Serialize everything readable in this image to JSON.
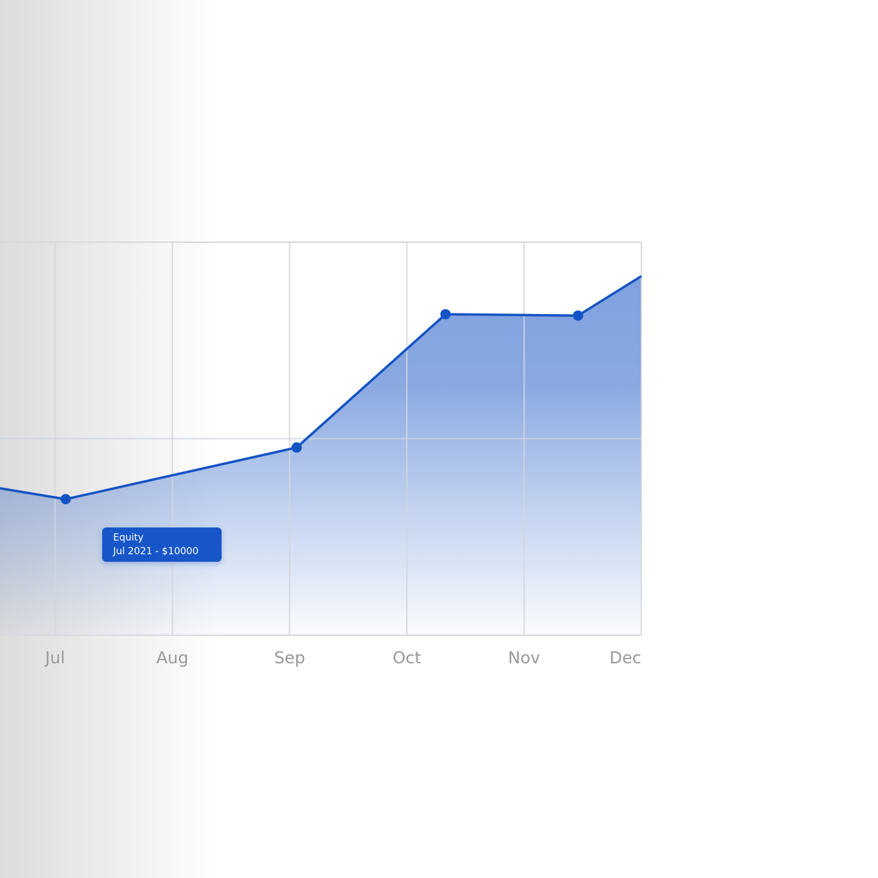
{
  "chart_data": {
    "type": "area",
    "series": [
      {
        "name": "Equity",
        "color": "#1553c4",
        "x": [
          6.53,
          7.09,
          9.06,
          10.33,
          11.46,
          12.0
        ],
        "values": [
          10800,
          10000,
          13800,
          23600,
          23500,
          26400
        ]
      }
    ],
    "xlim": [
      6.53,
      12
    ],
    "ylim": [
      0,
      28900
    ],
    "xticks": [
      {
        "value": 7,
        "label": "Jul"
      },
      {
        "value": 8,
        "label": "Aug"
      },
      {
        "value": 9,
        "label": "Sep"
      },
      {
        "value": 10,
        "label": "Oct"
      },
      {
        "value": 11,
        "label": "Nov"
      },
      {
        "value": 12,
        "label": "Dec"
      }
    ],
    "grid": true,
    "tooltip": {
      "title": "Equity",
      "text": "Jul 2021 - $10000"
    }
  }
}
